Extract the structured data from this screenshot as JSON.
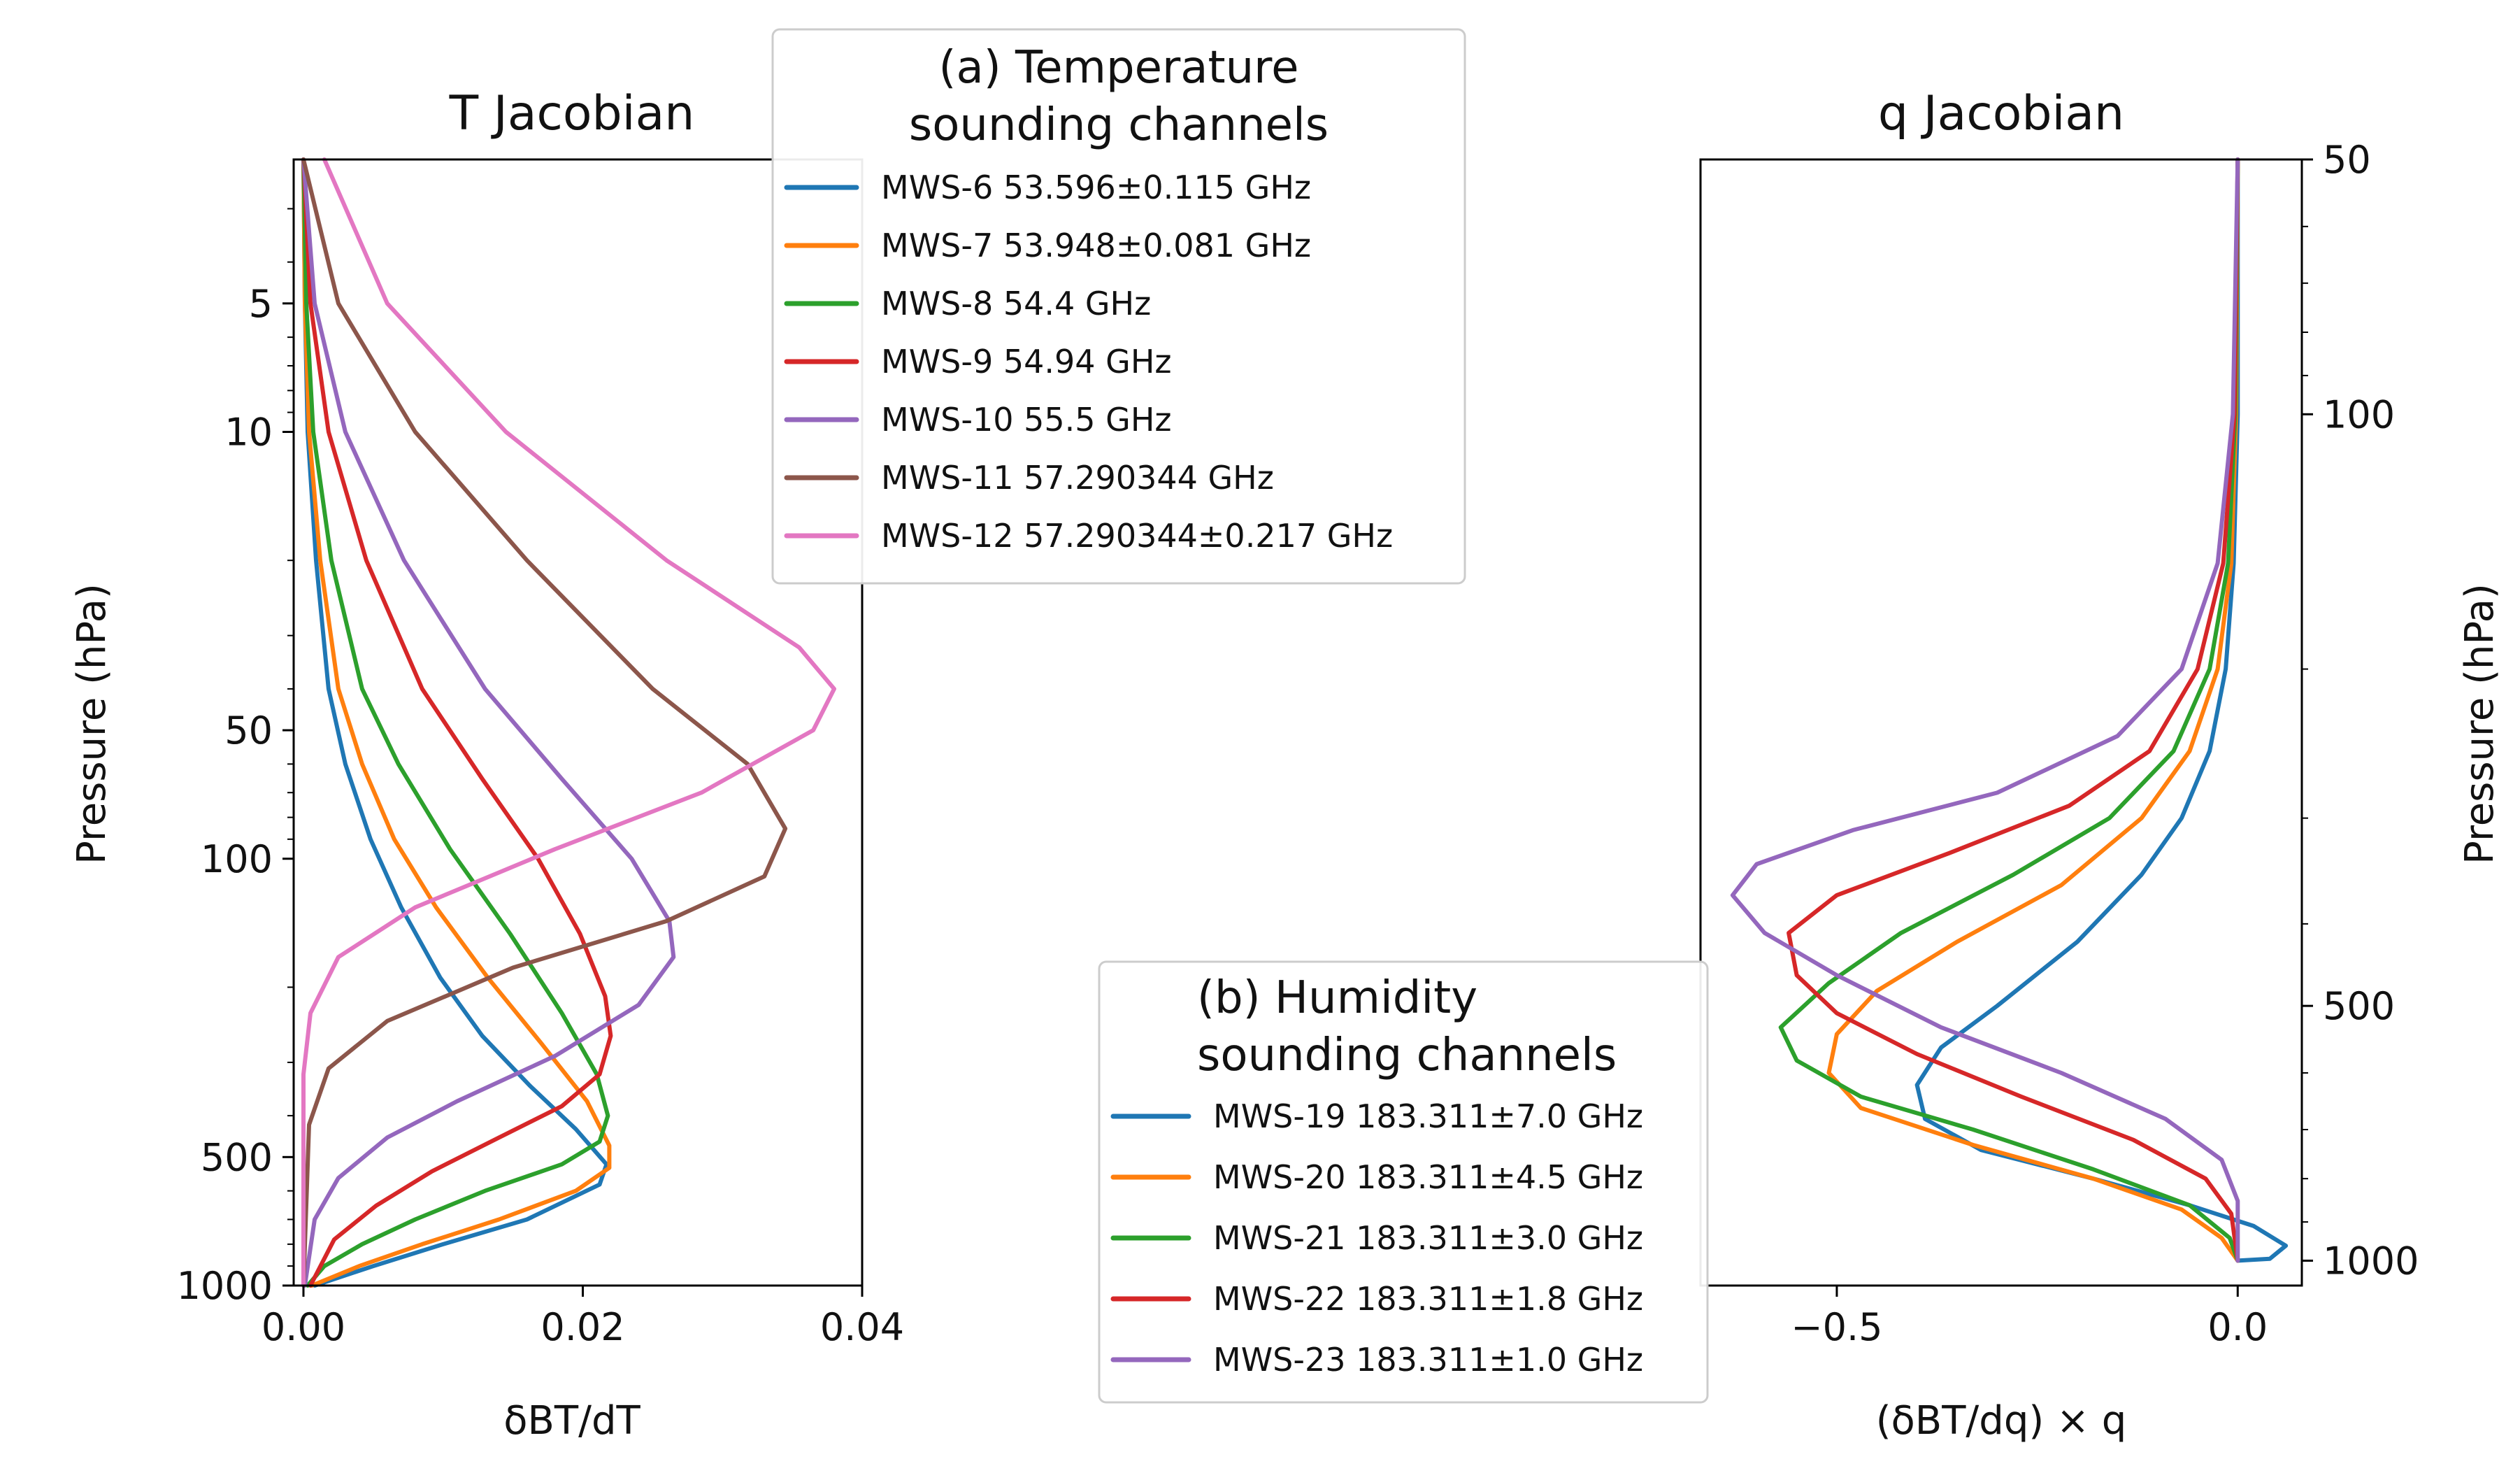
{
  "chart_data": [
    {
      "type": "line",
      "title": "T Jacobian",
      "xlabel": "δBT/dT",
      "ylabel": "Pressure (hPa)",
      "xlim": [
        -0.0007,
        0.04
      ],
      "ylim": [
        1000,
        2.3
      ],
      "yscale": "log",
      "grid": false,
      "xticks": [
        0.0,
        0.02,
        0.04
      ],
      "xtick_labels": [
        "0.00",
        "0.02",
        "0.04"
      ],
      "yticks": [
        5,
        10,
        50,
        100,
        500,
        1000
      ],
      "ytick_labels": [
        "5",
        "10",
        "50",
        "100",
        "500",
        "1000"
      ],
      "legend": {
        "title_lines": [
          "(a) Temperature",
          "sounding channels"
        ],
        "placement": "top-right (outside, between panels)"
      },
      "series": [
        {
          "name": "MWS-6",
          "label": "MWS-6  53.596±0.115 GHz",
          "color": "#1f77b4",
          "points": [
            [
              0.0,
              2.3
            ],
            [
              0.0001,
              5
            ],
            [
              0.0003,
              10
            ],
            [
              0.0009,
              20
            ],
            [
              0.0018,
              40
            ],
            [
              0.003,
              60
            ],
            [
              0.0048,
              90
            ],
            [
              0.007,
              130
            ],
            [
              0.0098,
              190
            ],
            [
              0.0128,
              260
            ],
            [
              0.0162,
              340
            ],
            [
              0.0195,
              430
            ],
            [
              0.0217,
              520
            ],
            [
              0.0212,
              580
            ],
            [
              0.016,
              700
            ],
            [
              0.01,
              800
            ],
            [
              0.005,
              900
            ],
            [
              0.0008,
              1000
            ]
          ]
        },
        {
          "name": "MWS-7",
          "label": "MWS-7  53.948±0.081 GHz",
          "color": "#ff7f0e",
          "points": [
            [
              0.0,
              2.3
            ],
            [
              0.0001,
              5
            ],
            [
              0.0004,
              10
            ],
            [
              0.0012,
              20
            ],
            [
              0.0025,
              40
            ],
            [
              0.0042,
              60
            ],
            [
              0.0065,
              90
            ],
            [
              0.0095,
              130
            ],
            [
              0.0132,
              190
            ],
            [
              0.017,
              270
            ],
            [
              0.0203,
              370
            ],
            [
              0.0219,
              470
            ],
            [
              0.0219,
              530
            ],
            [
              0.0195,
              600
            ],
            [
              0.014,
              700
            ],
            [
              0.0085,
              800
            ],
            [
              0.004,
              900
            ],
            [
              0.0006,
              1000
            ]
          ]
        },
        {
          "name": "MWS-8",
          "label": "MWS-8  54.4 GHz",
          "color": "#2ca02c",
          "points": [
            [
              0.0,
              2.3
            ],
            [
              0.0002,
              5
            ],
            [
              0.0007,
              10
            ],
            [
              0.002,
              20
            ],
            [
              0.0042,
              40
            ],
            [
              0.0068,
              60
            ],
            [
              0.0105,
              95
            ],
            [
              0.0148,
              150
            ],
            [
              0.0185,
              230
            ],
            [
              0.021,
              320
            ],
            [
              0.0218,
              400
            ],
            [
              0.0212,
              460
            ],
            [
              0.0185,
              520
            ],
            [
              0.013,
              600
            ],
            [
              0.008,
              700
            ],
            [
              0.0042,
              800
            ],
            [
              0.0015,
              900
            ],
            [
              0.0003,
              1000
            ]
          ]
        },
        {
          "name": "MWS-9",
          "label": "MWS-9  54.94 GHz",
          "color": "#d62728",
          "points": [
            [
              0.0,
              2.3
            ],
            [
              0.0005,
              5
            ],
            [
              0.0018,
              10
            ],
            [
              0.0045,
              20
            ],
            [
              0.0085,
              40
            ],
            [
              0.0128,
              65
            ],
            [
              0.0168,
              100
            ],
            [
              0.0198,
              150
            ],
            [
              0.0216,
              210
            ],
            [
              0.022,
              260
            ],
            [
              0.0212,
              320
            ],
            [
              0.0185,
              380
            ],
            [
              0.014,
              450
            ],
            [
              0.0092,
              540
            ],
            [
              0.0052,
              650
            ],
            [
              0.0022,
              780
            ],
            [
              0.0005,
              1000
            ]
          ]
        },
        {
          "name": "MWS-10",
          "label": "MWS-10  55.5 GHz",
          "color": "#9467bd",
          "points": [
            [
              0.0,
              2.3
            ],
            [
              0.0008,
              5
            ],
            [
              0.003,
              10
            ],
            [
              0.0072,
              20
            ],
            [
              0.013,
              40
            ],
            [
              0.0185,
              65
            ],
            [
              0.0235,
              100
            ],
            [
              0.0262,
              140
            ],
            [
              0.0265,
              170
            ],
            [
              0.024,
              220
            ],
            [
              0.018,
              290
            ],
            [
              0.011,
              370
            ],
            [
              0.006,
              450
            ],
            [
              0.0025,
              560
            ],
            [
              0.0008,
              700
            ],
            [
              0.0001,
              1000
            ]
          ]
        },
        {
          "name": "MWS-11",
          "label": "MWS-11  57.290344 GHz",
          "color": "#8c564b",
          "points": [
            [
              0.0,
              2.3
            ],
            [
              0.0025,
              5
            ],
            [
              0.008,
              10
            ],
            [
              0.016,
              20
            ],
            [
              0.025,
              40
            ],
            [
              0.0318,
              60
            ],
            [
              0.0345,
              85
            ],
            [
              0.033,
              110
            ],
            [
              0.026,
              140
            ],
            [
              0.015,
              180
            ],
            [
              0.006,
              240
            ],
            [
              0.0018,
              310
            ],
            [
              0.0004,
              420
            ],
            [
              0.0,
              1000
            ]
          ]
        },
        {
          "name": "MWS-12",
          "label": "MWS-12  57.290344±0.217 GHz",
          "color": "#e377c2",
          "points": [
            [
              0.0015,
              2.3
            ],
            [
              0.006,
              5
            ],
            [
              0.0145,
              10
            ],
            [
              0.026,
              20
            ],
            [
              0.0355,
              32
            ],
            [
              0.038,
              40
            ],
            [
              0.0365,
              50
            ],
            [
              0.0285,
              70
            ],
            [
              0.018,
              95
            ],
            [
              0.008,
              130
            ],
            [
              0.0025,
              170
            ],
            [
              0.0005,
              230
            ],
            [
              0.0,
              320
            ],
            [
              0.0,
              1000
            ]
          ]
        }
      ]
    },
    {
      "type": "line",
      "title": "q Jacobian",
      "xlabel": "(δBT/dq) × q",
      "ylabel": "Pressure (hPa)",
      "xlim": [
        -0.67,
        0.08
      ],
      "ylim": [
        1070,
        50
      ],
      "yscale": "log",
      "yaxis_position": "right",
      "grid": false,
      "xticks": [
        -0.5,
        0.0
      ],
      "xtick_labels": [
        "−0.5",
        "0.0"
      ],
      "yticks": [
        50,
        100,
        500,
        1000
      ],
      "ytick_labels": [
        "50",
        "100",
        "500",
        "1000"
      ],
      "legend": {
        "title_lines": [
          "(b) Humidity",
          "sounding channels"
        ],
        "placement": "bottom-left (outside, between panels)"
      },
      "series": [
        {
          "name": "MWS-19",
          "label": "MWS-19  183.311±7.0 GHz",
          "color": "#1f77b4",
          "points": [
            [
              0.0,
              50
            ],
            [
              0.0,
              100
            ],
            [
              -0.005,
              150
            ],
            [
              -0.015,
              200
            ],
            [
              -0.035,
              250
            ],
            [
              -0.07,
              300
            ],
            [
              -0.12,
              350
            ],
            [
              -0.2,
              420
            ],
            [
              -0.3,
              500
            ],
            [
              -0.37,
              560
            ],
            [
              -0.4,
              620
            ],
            [
              -0.39,
              680
            ],
            [
              -0.32,
              740
            ],
            [
              -0.18,
              800
            ],
            [
              -0.06,
              860
            ],
            [
              0.02,
              910
            ],
            [
              0.06,
              960
            ],
            [
              0.04,
              995
            ],
            [
              0.0,
              1000
            ]
          ]
        },
        {
          "name": "MWS-20",
          "label": "MWS-20  183.311±4.5 GHz",
          "color": "#ff7f0e",
          "points": [
            [
              0.0,
              50
            ],
            [
              -0.002,
              100
            ],
            [
              -0.008,
              150
            ],
            [
              -0.025,
              200
            ],
            [
              -0.06,
              250
            ],
            [
              -0.12,
              300
            ],
            [
              -0.22,
              360
            ],
            [
              -0.35,
              420
            ],
            [
              -0.45,
              480
            ],
            [
              -0.5,
              540
            ],
            [
              -0.51,
              600
            ],
            [
              -0.47,
              660
            ],
            [
              -0.33,
              730
            ],
            [
              -0.18,
              800
            ],
            [
              -0.07,
              870
            ],
            [
              -0.02,
              940
            ],
            [
              0.0,
              1000
            ]
          ]
        },
        {
          "name": "MWS-21",
          "label": "MWS-21  183.311±3.0 GHz",
          "color": "#2ca02c",
          "points": [
            [
              0.0,
              50
            ],
            [
              -0.003,
              100
            ],
            [
              -0.012,
              150
            ],
            [
              -0.035,
              200
            ],
            [
              -0.08,
              250
            ],
            [
              -0.16,
              300
            ],
            [
              -0.28,
              350
            ],
            [
              -0.42,
              410
            ],
            [
              -0.51,
              470
            ],
            [
              -0.57,
              530
            ],
            [
              -0.55,
              580
            ],
            [
              -0.47,
              640
            ],
            [
              -0.33,
              700
            ],
            [
              -0.18,
              780
            ],
            [
              -0.06,
              860
            ],
            [
              -0.01,
              940
            ],
            [
              0.0,
              1000
            ]
          ]
        },
        {
          "name": "MWS-22",
          "label": "MWS-22  183.311±1.8 GHz",
          "color": "#d62728",
          "points": [
            [
              0.0,
              50
            ],
            [
              -0.004,
              100
            ],
            [
              -0.018,
              150
            ],
            [
              -0.05,
              200
            ],
            [
              -0.11,
              250
            ],
            [
              -0.21,
              290
            ],
            [
              -0.36,
              330
            ],
            [
              -0.5,
              370
            ],
            [
              -0.56,
              410
            ],
            [
              -0.55,
              460
            ],
            [
              -0.5,
              510
            ],
            [
              -0.4,
              570
            ],
            [
              -0.27,
              640
            ],
            [
              -0.13,
              720
            ],
            [
              -0.04,
              800
            ],
            [
              -0.008,
              880
            ],
            [
              0.0,
              1000
            ]
          ]
        },
        {
          "name": "MWS-23",
          "label": "MWS-23  183.311±1.0 GHz",
          "color": "#9467bd",
          "points": [
            [
              0.0,
              50
            ],
            [
              -0.006,
              100
            ],
            [
              -0.025,
              150
            ],
            [
              -0.07,
              200
            ],
            [
              -0.15,
              240
            ],
            [
              -0.3,
              280
            ],
            [
              -0.48,
              310
            ],
            [
              -0.6,
              340
            ],
            [
              -0.63,
              370
            ],
            [
              -0.59,
              410
            ],
            [
              -0.5,
              460
            ],
            [
              -0.37,
              530
            ],
            [
              -0.22,
              600
            ],
            [
              -0.09,
              680
            ],
            [
              -0.02,
              760
            ],
            [
              0.0,
              850
            ],
            [
              0.0,
              1000
            ]
          ]
        }
      ]
    }
  ]
}
